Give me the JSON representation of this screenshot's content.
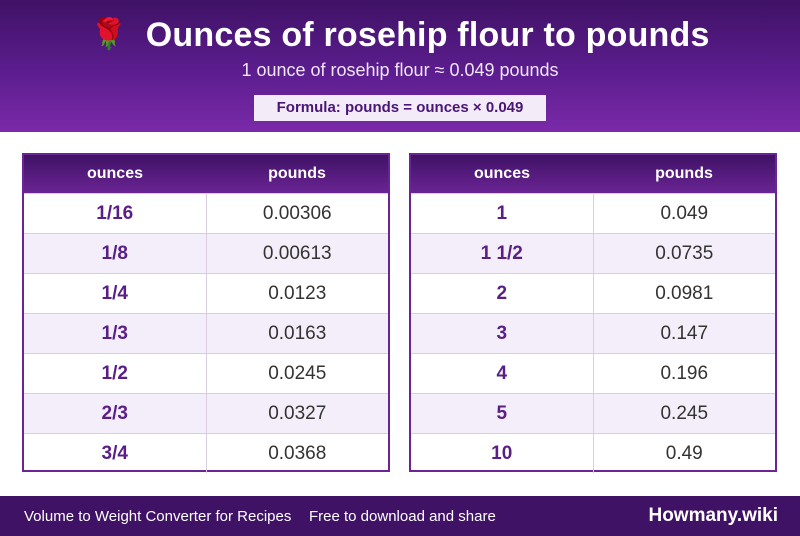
{
  "header": {
    "icon": "rose-icon",
    "title": "Ounces of rosehip flour to pounds",
    "subtitle": "1 ounce of rosehip flour ≈ 0.049 pounds",
    "formula": "Formula: pounds = ounces × 0.049"
  },
  "tables": {
    "col_ounces": "ounces",
    "col_pounds": "pounds",
    "left": [
      {
        "oz": "1/16",
        "lb": "0.00306"
      },
      {
        "oz": "1/8",
        "lb": "0.00613"
      },
      {
        "oz": "1/4",
        "lb": "0.0123"
      },
      {
        "oz": "1/3",
        "lb": "0.0163"
      },
      {
        "oz": "1/2",
        "lb": "0.0245"
      },
      {
        "oz": "2/3",
        "lb": "0.0327"
      },
      {
        "oz": "3/4",
        "lb": "0.0368"
      }
    ],
    "right": [
      {
        "oz": "1",
        "lb": "0.049"
      },
      {
        "oz": "1 1/2",
        "lb": "0.0735"
      },
      {
        "oz": "2",
        "lb": "0.0981"
      },
      {
        "oz": "3",
        "lb": "0.147"
      },
      {
        "oz": "4",
        "lb": "0.196"
      },
      {
        "oz": "5",
        "lb": "0.245"
      },
      {
        "oz": "10",
        "lb": "0.49"
      }
    ]
  },
  "footer": {
    "left_text": "Volume to Weight Converter for Recipes",
    "mid_text": "Free to download and share",
    "brand": "Howmany.wiki"
  },
  "colors": {
    "primary": "#5c1d8f",
    "dark": "#3f1265",
    "alt_row": "#f3eef9"
  }
}
